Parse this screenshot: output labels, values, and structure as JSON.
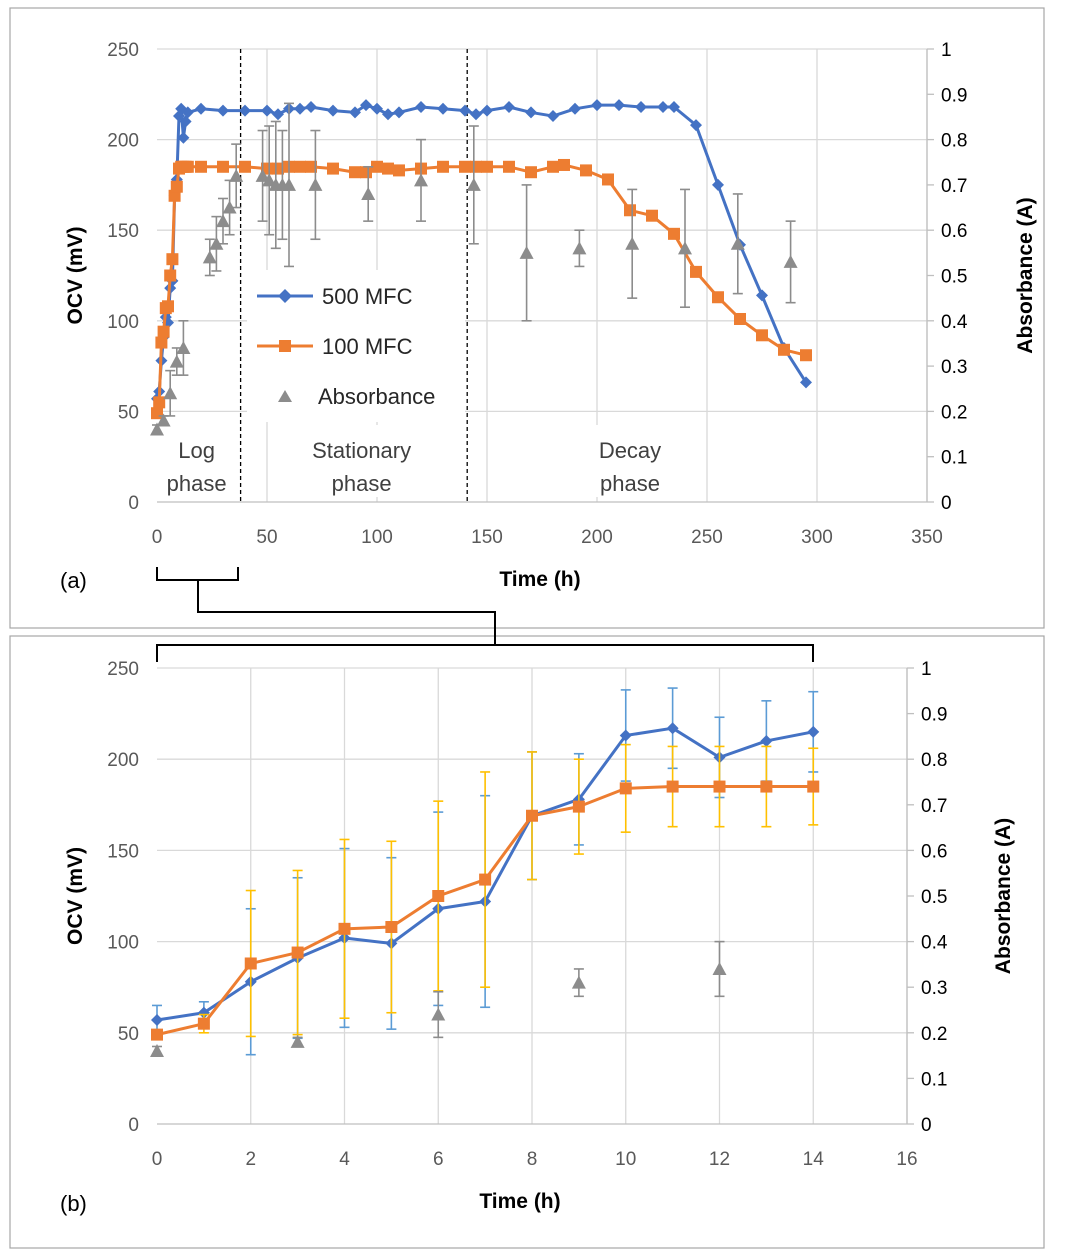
{
  "figure": {
    "panels": [
      {
        "tag": "(a)"
      },
      {
        "tag": "(b)"
      }
    ]
  },
  "chart_data": [
    {
      "type": "line",
      "panel": "(a)",
      "xlabel": "Time (h)",
      "ylabel": "OCV (mV)",
      "y2label": "Absorbance (A)",
      "xlim": [
        0,
        350
      ],
      "ylim": [
        0,
        250
      ],
      "y2lim": [
        0,
        1
      ],
      "x_ticks": [
        "0",
        "50",
        "100",
        "150",
        "200",
        "250",
        "300",
        "350"
      ],
      "y_ticks": [
        "0",
        "50",
        "100",
        "150",
        "200",
        "250"
      ],
      "y2_ticks": [
        "0",
        "0.1",
        "0.2",
        "0.3",
        "0.4",
        "0.5",
        "0.6",
        "0.7",
        "0.8",
        "0.9",
        "1"
      ],
      "grid": true,
      "legend": [
        {
          "label": "500 MFC",
          "color": "#4472c4",
          "marker": "diamond"
        },
        {
          "label": "100 MFC",
          "color": "#ed7d31",
          "marker": "square"
        },
        {
          "label": "Absorbance",
          "color": "#8c8c8c",
          "marker": "triangle"
        }
      ],
      "phase_dividers_x": [
        38,
        141
      ],
      "phases": [
        {
          "line1": "Log",
          "line2": "phase",
          "x": 18
        },
        {
          "line1": "Stationary",
          "line2": "phase",
          "x": 93
        },
        {
          "line1": "Decay",
          "line2": "phase",
          "x": 215
        }
      ],
      "series": [
        {
          "name": "500 MFC",
          "axis": "left",
          "color": "#4472c4",
          "marker": "diamond",
          "x": [
            0,
            1,
            2,
            3,
            4,
            5,
            6,
            7,
            8,
            9,
            10,
            11,
            12,
            13,
            14,
            20,
            30,
            40,
            50,
            55,
            60,
            65,
            70,
            80,
            90,
            95,
            100,
            105,
            110,
            120,
            130,
            140,
            145,
            150,
            160,
            170,
            180,
            190,
            200,
            210,
            220,
            230,
            235,
            245,
            255,
            265,
            275,
            285,
            295
          ],
          "y": [
            57,
            61,
            78,
            91,
            102,
            99,
            118,
            122,
            169,
            178,
            213,
            217,
            201,
            210,
            215,
            217,
            216,
            216,
            216,
            214,
            217,
            217,
            218,
            216,
            215,
            219,
            217,
            214,
            215,
            218,
            217,
            216,
            214,
            216,
            218,
            215,
            213,
            217,
            219,
            219,
            218,
            218,
            218,
            208,
            175,
            142,
            114,
            85,
            66
          ]
        },
        {
          "name": "100 MFC",
          "axis": "left",
          "color": "#ed7d31",
          "marker": "square",
          "x": [
            0,
            1,
            2,
            3,
            4,
            5,
            6,
            7,
            8,
            9,
            10,
            11,
            12,
            13,
            14,
            20,
            30,
            40,
            50,
            55,
            60,
            65,
            70,
            80,
            90,
            95,
            100,
            105,
            110,
            120,
            130,
            140,
            145,
            150,
            160,
            170,
            180,
            185,
            195,
            205,
            215,
            225,
            235,
            245,
            255,
            265,
            275,
            285,
            295
          ],
          "y": [
            49,
            55,
            88,
            94,
            107,
            108,
            125,
            134,
            169,
            174,
            184,
            185,
            185,
            185,
            185,
            185,
            185,
            185,
            184,
            184,
            185,
            185,
            185,
            184,
            182,
            182,
            185,
            184,
            183,
            184,
            185,
            185,
            185,
            185,
            185,
            182,
            185,
            186,
            183,
            178,
            161,
            158,
            148,
            127,
            113,
            101,
            92,
            84,
            81
          ]
        },
        {
          "name": "Absorbance",
          "axis": "right",
          "color": "#8c8c8c",
          "marker": "triangle",
          "x": [
            0,
            3,
            6,
            9,
            12,
            24,
            27,
            30,
            33,
            36,
            48,
            51,
            54,
            57,
            60,
            72,
            96,
            120,
            144,
            168,
            192,
            216,
            240,
            264,
            288
          ],
          "y": [
            0.16,
            0.18,
            0.24,
            0.31,
            0.34,
            0.54,
            0.57,
            0.62,
            0.65,
            0.72,
            0.72,
            0.71,
            0.7,
            0.7,
            0.7,
            0.7,
            0.68,
            0.71,
            0.7,
            0.55,
            0.56,
            0.57,
            0.56,
            0.57,
            0.53
          ],
          "err": [
            0.01,
            0.01,
            0.05,
            0.03,
            0.06,
            0.04,
            0.06,
            0.05,
            0.06,
            0.07,
            0.1,
            0.12,
            0.14,
            0.12,
            0.18,
            0.12,
            0.06,
            0.09,
            0.13,
            0.15,
            0.04,
            0.12,
            0.13,
            0.11,
            0.09
          ]
        }
      ]
    },
    {
      "type": "line",
      "panel": "(b)",
      "xlabel": "Time (h)",
      "ylabel": "OCV (mV)",
      "y2label": "Absorbance (A)",
      "xlim": [
        0,
        16
      ],
      "ylim": [
        0,
        250
      ],
      "y2lim": [
        0,
        1
      ],
      "x_ticks": [
        "0",
        "2",
        "4",
        "6",
        "8",
        "10",
        "12",
        "14",
        "16"
      ],
      "y_ticks": [
        "0",
        "50",
        "100",
        "150",
        "200",
        "250"
      ],
      "y2_ticks": [
        "0",
        "0.1",
        "0.2",
        "0.3",
        "0.4",
        "0.5",
        "0.6",
        "0.7",
        "0.8",
        "0.9",
        "1"
      ],
      "grid": true,
      "series": [
        {
          "name": "500 MFC",
          "axis": "left",
          "color": "#4472c4",
          "errcolor": "#5b9bd5",
          "marker": "diamond",
          "x": [
            0,
            1,
            2,
            3,
            4,
            5,
            6,
            7,
            8,
            9,
            10,
            11,
            12,
            13,
            14
          ],
          "y": [
            57,
            61,
            78,
            91,
            102,
            99,
            118,
            122,
            169,
            178,
            213,
            217,
            201,
            210,
            215
          ],
          "err": [
            8,
            6,
            40,
            44,
            49,
            47,
            53,
            58,
            35,
            25,
            25,
            22,
            22,
            22,
            22
          ]
        },
        {
          "name": "100 MFC",
          "axis": "left",
          "color": "#ed7d31",
          "errcolor": "#ffc000",
          "marker": "square",
          "x": [
            0,
            1,
            2,
            3,
            4,
            5,
            6,
            7,
            8,
            9,
            10,
            11,
            12,
            13,
            14
          ],
          "y": [
            49,
            55,
            88,
            94,
            107,
            108,
            125,
            134,
            169,
            174,
            184,
            185,
            185,
            185,
            185
          ],
          "err": [
            0,
            5,
            40,
            45,
            49,
            47,
            52,
            59,
            35,
            26,
            24,
            22,
            22,
            22,
            21
          ]
        },
        {
          "name": "Absorbance",
          "axis": "right",
          "color": "#8c8c8c",
          "marker": "triangle",
          "x": [
            0,
            3,
            6,
            9,
            12
          ],
          "y": [
            0.16,
            0.18,
            0.24,
            0.31,
            0.34
          ],
          "err": [
            0.01,
            0.01,
            0.05,
            0.03,
            0.06
          ]
        }
      ]
    }
  ]
}
